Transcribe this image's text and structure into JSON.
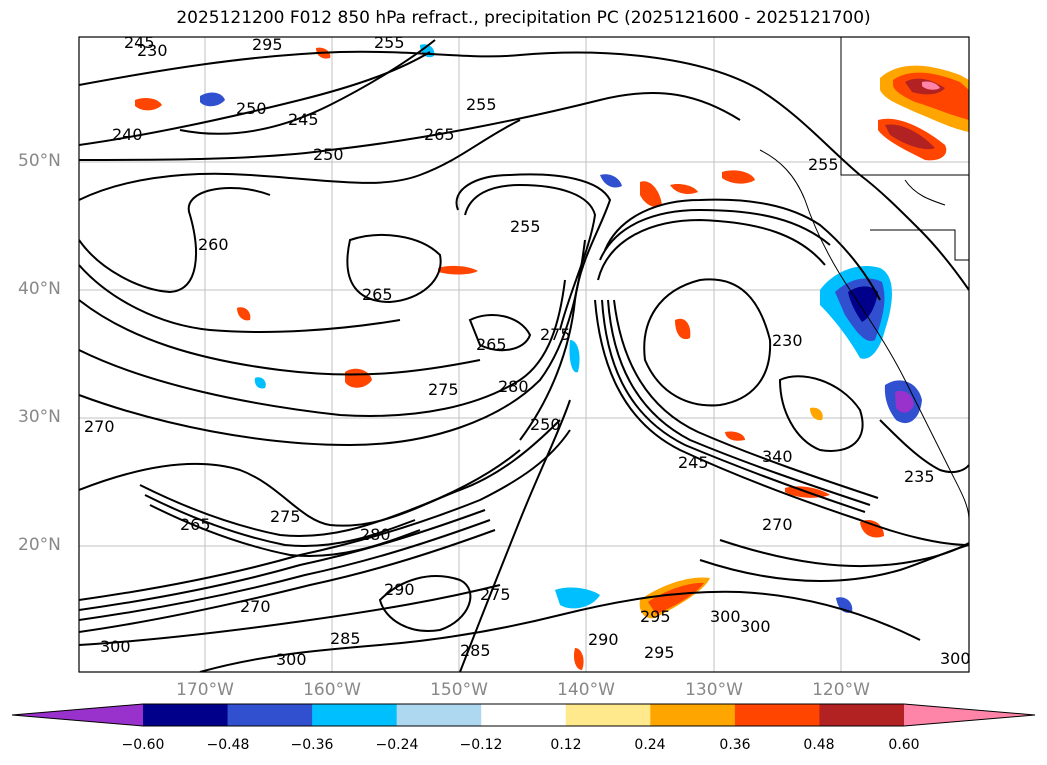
{
  "title": "2025121200 F012 850 hPa refract., precipitation PC (2025121600 - 2025121700)",
  "lat_labels": [
    "50°N",
    "40°N",
    "30°N",
    "20°N"
  ],
  "lon_labels": [
    "170°W",
    "160°W",
    "150°W",
    "140°W",
    "130°W",
    "120°W"
  ],
  "contour_labels": [
    "245",
    "230",
    "295",
    "255",
    "250",
    "265",
    "245",
    "255",
    "240",
    "250",
    "260",
    "265",
    "255",
    "275",
    "265",
    "275",
    "230",
    "270",
    "250",
    "280",
    "245",
    "275",
    "280",
    "290",
    "265",
    "300",
    "270",
    "300",
    "285",
    "290",
    "295",
    "300",
    "295",
    "300",
    "255",
    "235",
    "340",
    "270",
    "275",
    "285",
    "300"
  ],
  "colorbar": {
    "ticks": [
      "−0.60",
      "−0.48",
      "−0.36",
      "−0.24",
      "−0.12",
      "0.12",
      "0.24",
      "0.36",
      "0.48",
      "0.60"
    ],
    "colors": [
      "#9932cc",
      "#00008b",
      "#3050d0",
      "#00bfff",
      "#add8f0",
      "#ffffff",
      "#ffe98c",
      "#ffa500",
      "#ff4500",
      "#b22222",
      "#ff85a8"
    ]
  }
}
